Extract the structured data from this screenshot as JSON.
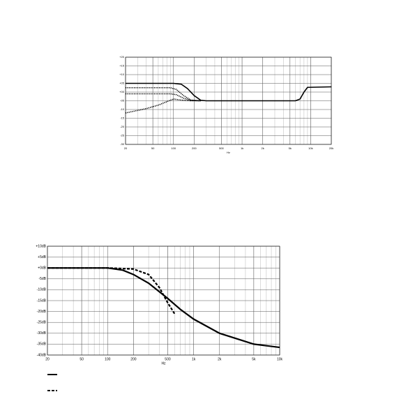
{
  "chart_data": [
    {
      "type": "line",
      "x_scale": "log",
      "grid": true,
      "xlabel": "Hz",
      "xlim": [
        20,
        20000
      ],
      "ylim": [
        -30,
        20
      ],
      "xticks": [
        20,
        50,
        100,
        200,
        500,
        {
          "value": 1000,
          "label": "1k"
        },
        {
          "value": 2000,
          "label": "2k"
        },
        {
          "value": 5000,
          "label": "5k"
        },
        {
          "value": 10000,
          "label": "10k"
        },
        {
          "value": 20000,
          "label": "20k"
        }
      ],
      "yticks": [
        {
          "value": 20,
          "label": "+20"
        },
        {
          "value": 15,
          "label": "+15"
        },
        {
          "value": 10,
          "label": "+10"
        },
        {
          "value": 5,
          "label": "+05"
        },
        {
          "value": 0,
          "label": "+00"
        },
        {
          "value": -5,
          "label": "-05"
        },
        {
          "value": -10,
          "label": "-10"
        },
        {
          "value": -15,
          "label": "-15"
        },
        {
          "value": -20,
          "label": "-20"
        },
        {
          "value": -25,
          "label": "-25"
        },
        {
          "value": -30,
          "label": "-30"
        }
      ],
      "series": [
        {
          "color": "#000",
          "style": "solid",
          "x": [
            20,
            100,
            130,
            160,
            200,
            250,
            300,
            6000,
            7000,
            8000,
            9000,
            20000
          ],
          "values": [
            5,
            5,
            4.5,
            2,
            -2,
            -4.7,
            -5,
            -5,
            -4,
            0,
            2.7,
            3
          ]
        },
        {
          "color": "#000",
          "style": "dotted",
          "x": [
            20,
            90,
            110,
            140,
            180,
            250
          ],
          "values": [
            2.5,
            2.5,
            1.5,
            -2,
            -4.6,
            -5
          ]
        },
        {
          "color": "#000",
          "style": "dotted",
          "x": [
            20,
            90,
            110,
            140,
            180,
            250
          ],
          "values": [
            -1,
            -1,
            -1.5,
            -3.5,
            -4.8,
            -5
          ]
        },
        {
          "color": "#000",
          "style": "dotted",
          "x": [
            20,
            40,
            60,
            80,
            100,
            130,
            180,
            250
          ],
          "values": [
            -12,
            -9.5,
            -7.5,
            -5.5,
            -4,
            -4.6,
            -5,
            -5
          ]
        }
      ]
    },
    {
      "type": "line",
      "x_scale": "log",
      "grid": true,
      "xlabel": "Hz",
      "xlim": [
        20,
        10000
      ],
      "ylim": [
        -40,
        10
      ],
      "xticks": [
        20,
        50,
        100,
        200,
        500,
        {
          "value": 1000,
          "label": "1k"
        },
        {
          "value": 2000,
          "label": "2k"
        },
        {
          "value": 5000,
          "label": "5k"
        },
        {
          "value": 10000,
          "label": "10k"
        }
      ],
      "yticks": [
        {
          "value": 10,
          "label": "+10dB"
        },
        {
          "value": 5,
          "label": "+5dB"
        },
        {
          "value": 0,
          "label": "+0dB"
        },
        {
          "value": -5,
          "label": "-5dB"
        },
        {
          "value": -10,
          "label": "-10dB"
        },
        {
          "value": -15,
          "label": "-15dB"
        },
        {
          "value": -20,
          "label": "-20dB"
        },
        {
          "value": -25,
          "label": "-25dB"
        },
        {
          "value": -30,
          "label": "-30dB"
        },
        {
          "value": -35,
          "label": "-35dB"
        },
        {
          "value": -40,
          "label": "-40dB"
        }
      ],
      "series": [
        {
          "color": "#000",
          "style": "solid",
          "x": [
            20,
            100,
            150,
            200,
            300,
            500,
            700,
            1000,
            2000,
            5000,
            10000
          ],
          "values": [
            0,
            0,
            -1,
            -3,
            -7,
            -14,
            -19,
            -23.5,
            -30,
            -35,
            -36.5
          ]
        },
        {
          "color": "#000",
          "style": "dashed",
          "x": [
            20,
            100,
            200,
            300,
            400,
            500,
            600
          ],
          "values": [
            0,
            0,
            -0.5,
            -3,
            -9,
            -16,
            -21
          ]
        }
      ]
    }
  ]
}
